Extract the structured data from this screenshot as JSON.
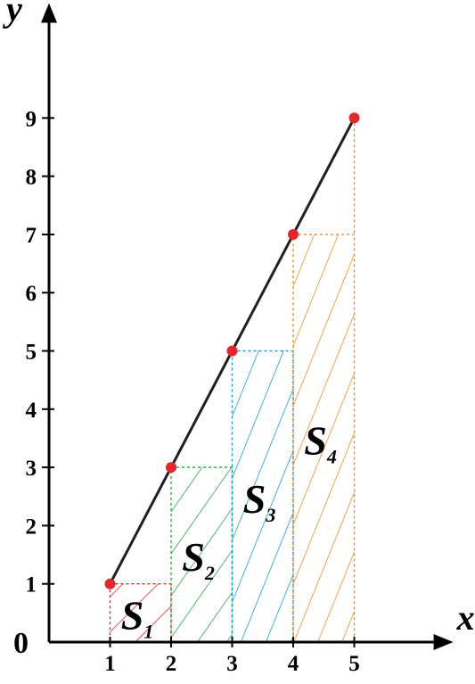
{
  "chart_data": {
    "type": "line",
    "x": [
      1,
      2,
      3,
      4,
      5
    ],
    "y": [
      1,
      3,
      5,
      7,
      9
    ],
    "xlabel": "x",
    "ylabel": "y",
    "origin_label": "0",
    "xticks": [
      1,
      2,
      3,
      4,
      5
    ],
    "yticks": [
      1,
      2,
      3,
      4,
      5,
      6,
      7,
      8,
      9
    ],
    "xlim": [
      0,
      5.6
    ],
    "ylim": [
      0,
      9.9
    ],
    "grid": false,
    "line_color": "#231f20",
    "point_color": "#e0282e",
    "regions": [
      {
        "letter": "S",
        "sub": "1",
        "x": [
          1,
          2
        ],
        "height": 1,
        "color": "#e0282e"
      },
      {
        "letter": "S",
        "sub": "2",
        "x": [
          2,
          3
        ],
        "height": 3,
        "color": "#27a548"
      },
      {
        "letter": "S",
        "sub": "3",
        "x": [
          3,
          4
        ],
        "height": 5,
        "color": "#1d9ad6"
      },
      {
        "letter": "S",
        "sub": "4",
        "x": [
          4,
          5
        ],
        "height": 7,
        "color": "#f08a24"
      }
    ]
  }
}
